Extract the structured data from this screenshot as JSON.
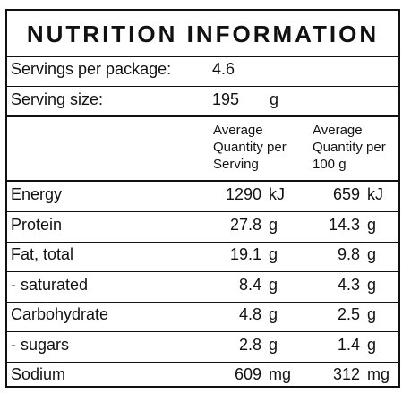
{
  "title": "NUTRITION INFORMATION",
  "servings": {
    "label": "Servings per package:",
    "value": "4.6"
  },
  "serving_size": {
    "label": "Serving size:",
    "value": "195",
    "unit": "g"
  },
  "headers": {
    "per_serving": "Average\nQuantity per\nServing",
    "per_100g": "Average\nQuantity per\n100 g"
  },
  "rows": [
    {
      "name": "Energy",
      "serving": "1290",
      "serving_unit": "kJ",
      "per100": "659",
      "per100_unit": "kJ"
    },
    {
      "name": "Protein",
      "serving": "27.8",
      "serving_unit": "g",
      "per100": "14.3",
      "per100_unit": "g"
    },
    {
      "name": "Fat, total",
      "serving": "19.1",
      "serving_unit": "g",
      "per100": "9.8",
      "per100_unit": "g"
    },
    {
      "name": "- saturated",
      "serving": "8.4",
      "serving_unit": "g",
      "per100": "4.3",
      "per100_unit": "g"
    },
    {
      "name": "Carbohydrate",
      "serving": "4.8",
      "serving_unit": "g",
      "per100": "2.5",
      "per100_unit": "g"
    },
    {
      "name": "- sugars",
      "serving": "2.8",
      "serving_unit": "g",
      "per100": "1.4",
      "per100_unit": "g"
    },
    {
      "name": "Sodium",
      "serving": "609",
      "serving_unit": "mg",
      "per100": "312",
      "per100_unit": "mg"
    }
  ]
}
